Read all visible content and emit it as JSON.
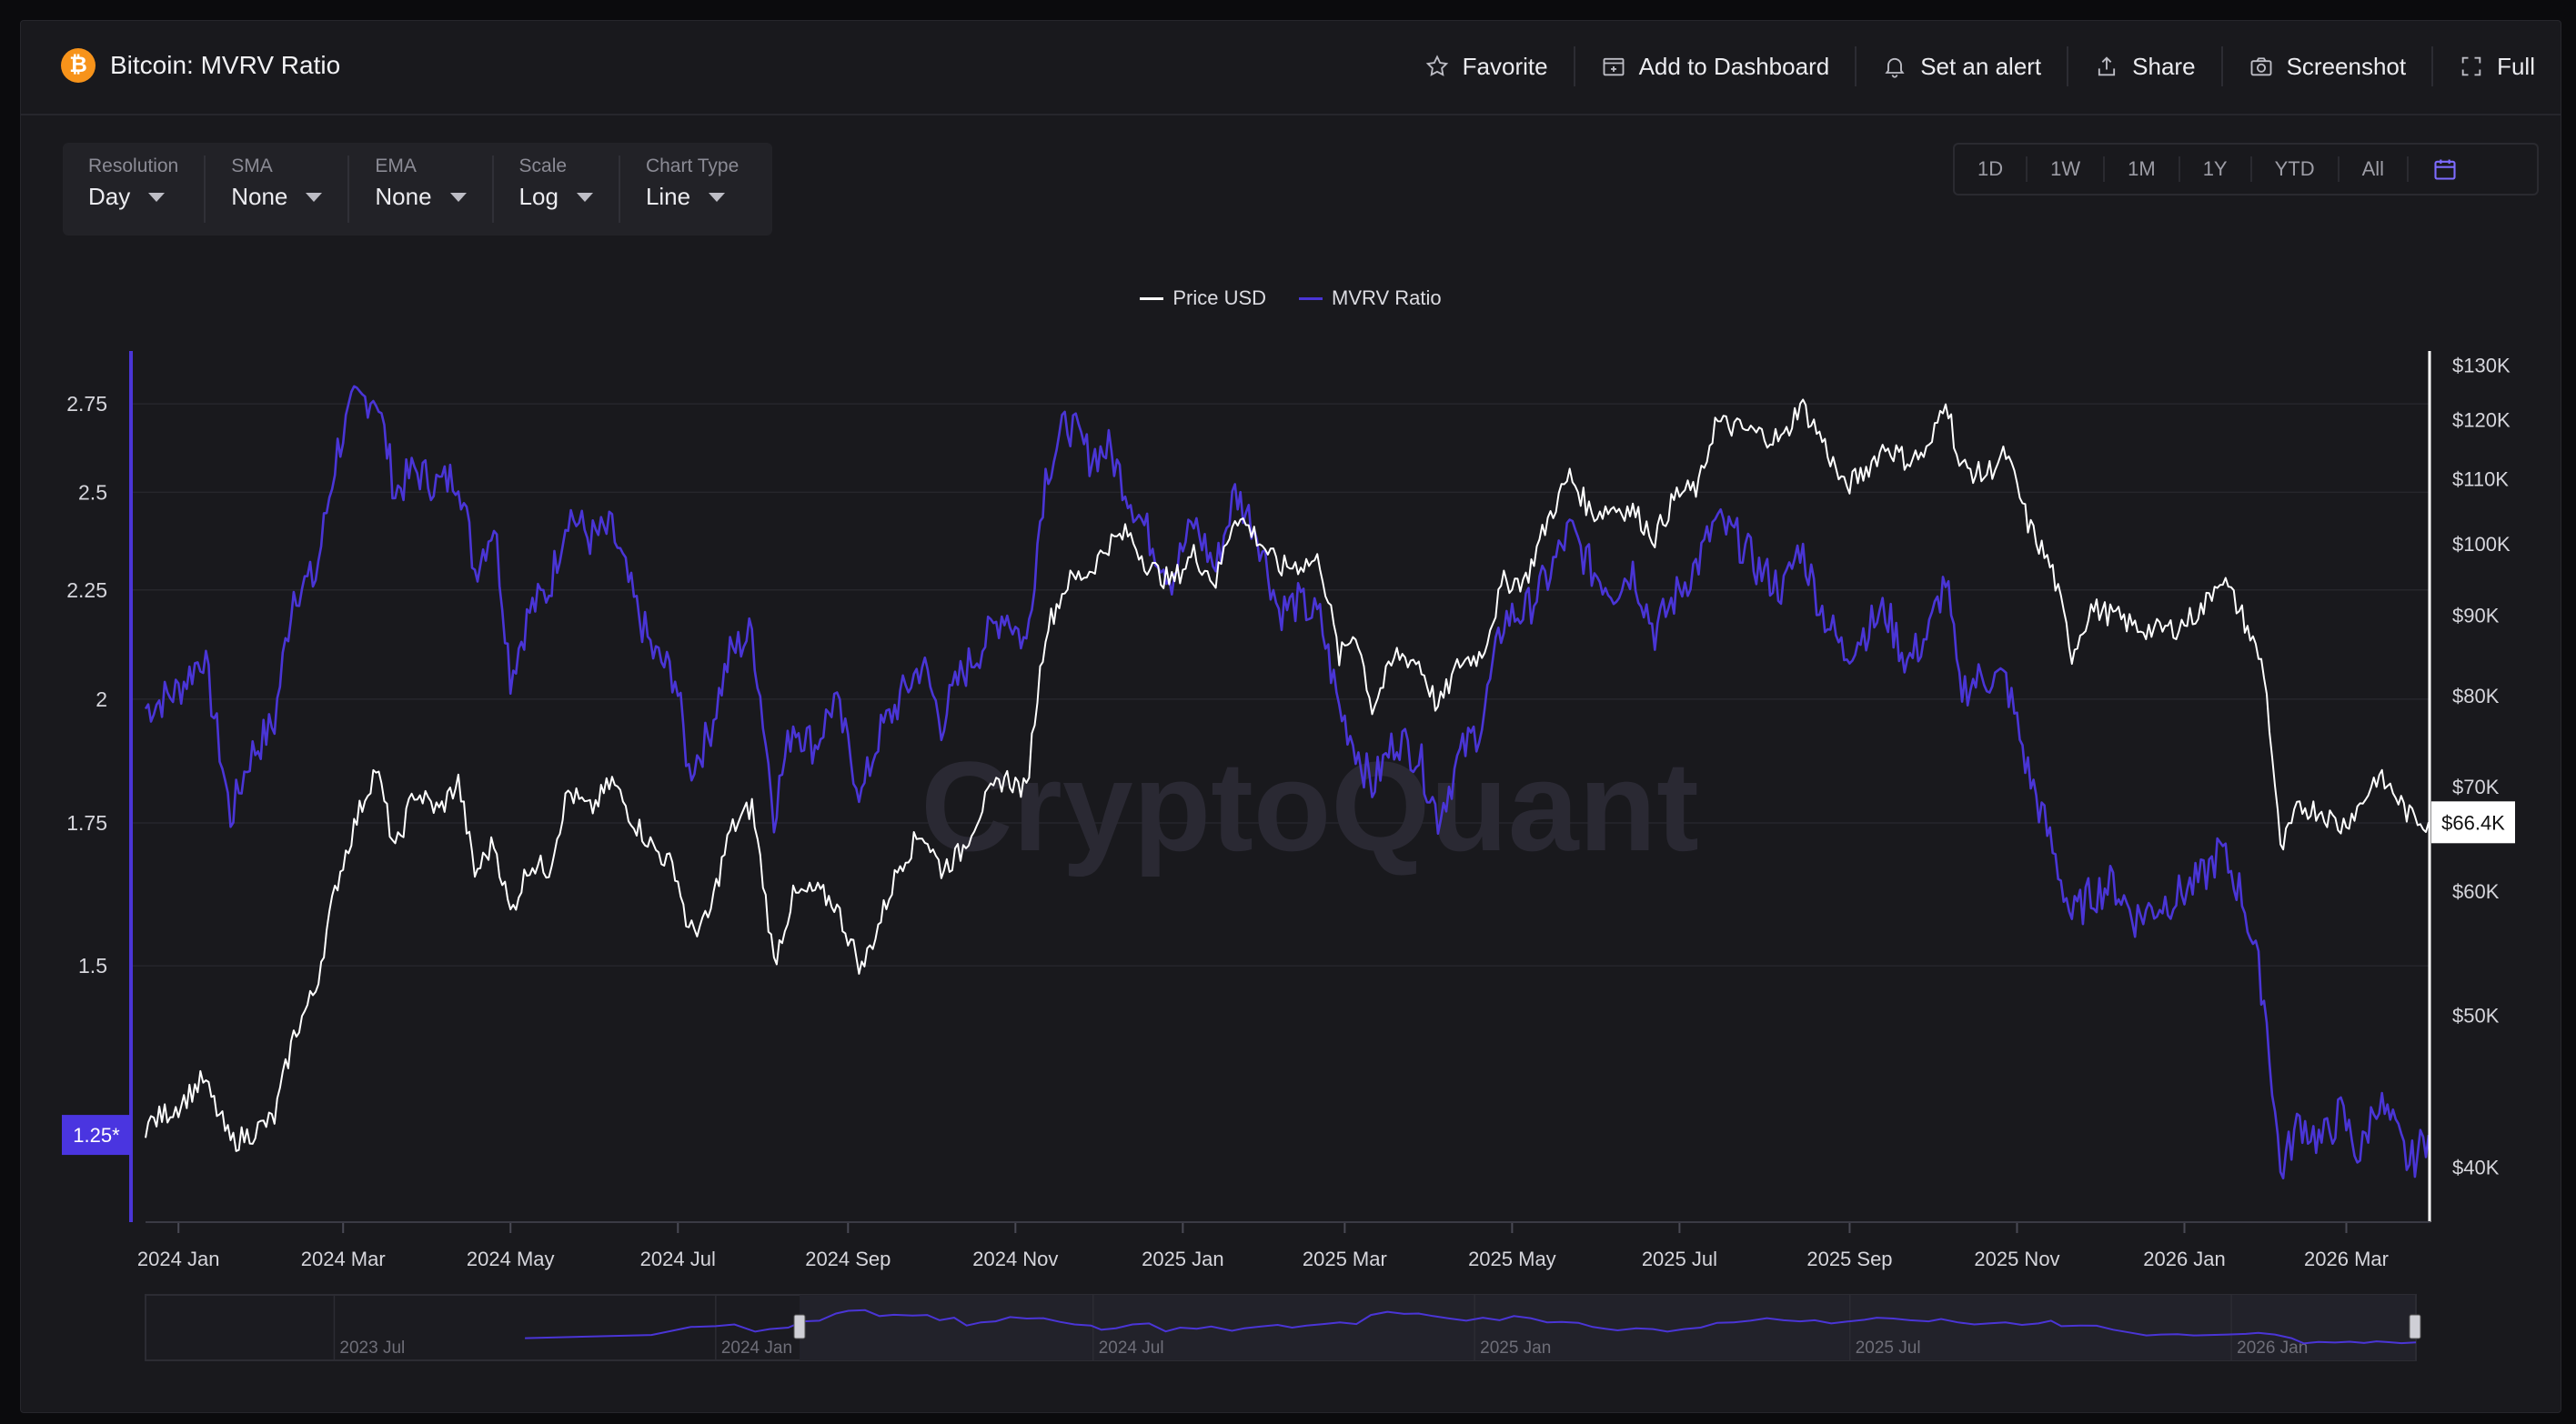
{
  "header": {
    "icon": "bitcoin-icon",
    "title": "Bitcoin: MVRV Ratio",
    "actions": [
      {
        "label": "Favorite",
        "icon": "star-icon"
      },
      {
        "label": "Add to Dashboard",
        "icon": "dashboard-add-icon"
      },
      {
        "label": "Set an alert",
        "icon": "bell-icon"
      },
      {
        "label": "Share",
        "icon": "share-icon"
      },
      {
        "label": "Screenshot",
        "icon": "camera-icon"
      },
      {
        "label": "Full",
        "icon": "fullscreen-icon"
      }
    ]
  },
  "controls": [
    {
      "label": "Resolution",
      "value": "Day"
    },
    {
      "label": "SMA",
      "value": "None"
    },
    {
      "label": "EMA",
      "value": "None"
    },
    {
      "label": "Scale",
      "value": "Log"
    },
    {
      "label": "Chart Type",
      "value": "Line"
    }
  ],
  "ranges": [
    "1D",
    "1W",
    "1M",
    "1Y",
    "YTD",
    "All"
  ],
  "watermark": "CryptoQuant",
  "colors": {
    "price": "#ffffff",
    "mvrv": "#4a35d6",
    "accent": "#5b46ff",
    "background": "#19191d"
  },
  "chart_data": {
    "type": "line",
    "title": "Bitcoin: MVRV Ratio",
    "legend": [
      "Price USD",
      "MVRV Ratio"
    ],
    "legend_position": "top-center",
    "grid": true,
    "scale": "log",
    "x_tick_labels": [
      "2024 Jan",
      "2024 Mar",
      "2024 May",
      "2024 Jul",
      "2024 Sep",
      "2024 Nov",
      "2025 Jan",
      "2025 Mar",
      "2025 May",
      "2025 Jul",
      "2025 Sep",
      "2025 Nov",
      "2026 Jan",
      "2026 Mar"
    ],
    "left_axis": {
      "ticks": [
        "2.75",
        "2.5",
        "2.25",
        "2",
        "1.75",
        "1.5"
      ],
      "range": [
        1.14,
        2.9
      ],
      "current_label": "1.25*"
    },
    "right_axis": {
      "ticks": [
        "$130K",
        "$120K",
        "$110K",
        "$100K",
        "$90K",
        "$80K",
        "$70K",
        "$60K",
        "$50K",
        "$40K"
      ],
      "range": [
        37000,
        132000
      ],
      "current_label": "$66.4K"
    },
    "x_range": [
      "2023-12-20",
      "2026-03-31"
    ],
    "series": [
      {
        "name": "MVRV Ratio",
        "axis": "left",
        "points": [
          [
            "2023-12-20",
            1.98
          ],
          [
            "2024-01-01",
            2.02
          ],
          [
            "2024-01-10",
            2.1
          ],
          [
            "2024-01-20",
            1.76
          ],
          [
            "2024-01-27",
            1.88
          ],
          [
            "2024-02-05",
            1.95
          ],
          [
            "2024-02-12",
            2.25
          ],
          [
            "2024-02-20",
            2.28
          ],
          [
            "2024-02-28",
            2.62
          ],
          [
            "2024-03-05",
            2.75
          ],
          [
            "2024-03-13",
            2.78
          ],
          [
            "2024-03-20",
            2.5
          ],
          [
            "2024-03-27",
            2.56
          ],
          [
            "2024-04-05",
            2.52
          ],
          [
            "2024-04-12",
            2.55
          ],
          [
            "2024-04-18",
            2.3
          ],
          [
            "2024-04-25",
            2.42
          ],
          [
            "2024-05-01",
            2.05
          ],
          [
            "2024-05-08",
            2.2
          ],
          [
            "2024-05-15",
            2.25
          ],
          [
            "2024-05-22",
            2.45
          ],
          [
            "2024-05-30",
            2.38
          ],
          [
            "2024-06-07",
            2.4
          ],
          [
            "2024-06-15",
            2.22
          ],
          [
            "2024-06-22",
            2.1
          ],
          [
            "2024-06-30",
            2.05
          ],
          [
            "2024-07-05",
            1.85
          ],
          [
            "2024-07-12",
            1.92
          ],
          [
            "2024-07-20",
            2.1
          ],
          [
            "2024-07-28",
            2.15
          ],
          [
            "2024-08-05",
            1.77
          ],
          [
            "2024-08-12",
            1.95
          ],
          [
            "2024-08-20",
            1.9
          ],
          [
            "2024-08-27",
            2.0
          ],
          [
            "2024-09-06",
            1.8
          ],
          [
            "2024-09-12",
            1.92
          ],
          [
            "2024-09-20",
            2.0
          ],
          [
            "2024-09-28",
            2.08
          ],
          [
            "2024-10-05",
            1.95
          ],
          [
            "2024-10-12",
            2.05
          ],
          [
            "2024-10-20",
            2.12
          ],
          [
            "2024-10-28",
            2.2
          ],
          [
            "2024-11-05",
            2.12
          ],
          [
            "2024-11-12",
            2.55
          ],
          [
            "2024-11-20",
            2.7
          ],
          [
            "2024-11-28",
            2.6
          ],
          [
            "2024-12-05",
            2.62
          ],
          [
            "2024-12-12",
            2.5
          ],
          [
            "2024-12-20",
            2.38
          ],
          [
            "2024-12-28",
            2.28
          ],
          [
            "2025-01-05",
            2.42
          ],
          [
            "2025-01-13",
            2.3
          ],
          [
            "2025-01-20",
            2.5
          ],
          [
            "2025-01-28",
            2.4
          ],
          [
            "2025-02-05",
            2.2
          ],
          [
            "2025-02-12",
            2.22
          ],
          [
            "2025-02-20",
            2.18
          ],
          [
            "2025-02-27",
            1.98
          ],
          [
            "2025-03-05",
            1.9
          ],
          [
            "2025-03-11",
            1.82
          ],
          [
            "2025-03-20",
            1.92
          ],
          [
            "2025-03-28",
            1.88
          ],
          [
            "2025-04-04",
            1.76
          ],
          [
            "2025-04-12",
            1.88
          ],
          [
            "2025-04-20",
            1.95
          ],
          [
            "2025-04-28",
            2.18
          ],
          [
            "2025-05-06",
            2.2
          ],
          [
            "2025-05-14",
            2.28
          ],
          [
            "2025-05-22",
            2.4
          ],
          [
            "2025-05-30",
            2.3
          ],
          [
            "2025-06-07",
            2.25
          ],
          [
            "2025-06-14",
            2.3
          ],
          [
            "2025-06-22",
            2.15
          ],
          [
            "2025-06-30",
            2.24
          ],
          [
            "2025-07-08",
            2.32
          ],
          [
            "2025-07-14",
            2.42
          ],
          [
            "2025-07-22",
            2.38
          ],
          [
            "2025-07-30",
            2.3
          ],
          [
            "2025-08-08",
            2.25
          ],
          [
            "2025-08-14",
            2.36
          ],
          [
            "2025-08-22",
            2.2
          ],
          [
            "2025-08-30",
            2.1
          ],
          [
            "2025-09-06",
            2.15
          ],
          [
            "2025-09-14",
            2.2
          ],
          [
            "2025-09-22",
            2.08
          ],
          [
            "2025-09-30",
            2.15
          ],
          [
            "2025-10-06",
            2.28
          ],
          [
            "2025-10-11",
            2.02
          ],
          [
            "2025-10-20",
            2.05
          ],
          [
            "2025-10-28",
            2.04
          ],
          [
            "2025-11-05",
            1.85
          ],
          [
            "2025-11-14",
            1.7
          ],
          [
            "2025-11-21",
            1.58
          ],
          [
            "2025-11-28",
            1.62
          ],
          [
            "2025-12-06",
            1.64
          ],
          [
            "2025-12-14",
            1.58
          ],
          [
            "2025-12-22",
            1.6
          ],
          [
            "2025-12-30",
            1.62
          ],
          [
            "2026-01-08",
            1.65
          ],
          [
            "2026-01-14",
            1.7
          ],
          [
            "2026-01-22",
            1.62
          ],
          [
            "2026-01-30",
            1.45
          ],
          [
            "2026-02-05",
            1.2
          ],
          [
            "2026-02-12",
            1.27
          ],
          [
            "2026-02-20",
            1.24
          ],
          [
            "2026-02-27",
            1.28
          ],
          [
            "2026-03-06",
            1.22
          ],
          [
            "2026-03-12",
            1.3
          ],
          [
            "2026-03-18",
            1.26
          ],
          [
            "2026-03-24",
            1.21
          ],
          [
            "2026-03-31",
            1.25
          ]
        ]
      },
      {
        "name": "Price USD",
        "axis": "right",
        "points": [
          [
            "2023-12-20",
            42500
          ],
          [
            "2024-01-01",
            43800
          ],
          [
            "2024-01-10",
            45500
          ],
          [
            "2024-01-20",
            41500
          ],
          [
            "2024-01-27",
            42000
          ],
          [
            "2024-02-05",
            43000
          ],
          [
            "2024-02-12",
            48500
          ],
          [
            "2024-02-20",
            52000
          ],
          [
            "2024-02-28",
            61000
          ],
          [
            "2024-03-05",
            66000
          ],
          [
            "2024-03-13",
            72000
          ],
          [
            "2024-03-20",
            63500
          ],
          [
            "2024-03-27",
            69500
          ],
          [
            "2024-04-05",
            67500
          ],
          [
            "2024-04-12",
            70500
          ],
          [
            "2024-04-18",
            61500
          ],
          [
            "2024-04-25",
            64500
          ],
          [
            "2024-05-01",
            58000
          ],
          [
            "2024-05-08",
            62500
          ],
          [
            "2024-05-15",
            62000
          ],
          [
            "2024-05-22",
            69500
          ],
          [
            "2024-05-30",
            67500
          ],
          [
            "2024-06-07",
            70500
          ],
          [
            "2024-06-15",
            66500
          ],
          [
            "2024-06-22",
            64000
          ],
          [
            "2024-06-30",
            62000
          ],
          [
            "2024-07-05",
            56500
          ],
          [
            "2024-07-12",
            57500
          ],
          [
            "2024-07-20",
            65500
          ],
          [
            "2024-07-28",
            68000
          ],
          [
            "2024-08-05",
            54000
          ],
          [
            "2024-08-12",
            59500
          ],
          [
            "2024-08-20",
            60000
          ],
          [
            "2024-08-27",
            59000
          ],
          [
            "2024-09-06",
            53500
          ],
          [
            "2024-09-12",
            57000
          ],
          [
            "2024-09-20",
            62500
          ],
          [
            "2024-09-28",
            65500
          ],
          [
            "2024-10-05",
            62000
          ],
          [
            "2024-10-12",
            63500
          ],
          [
            "2024-10-20",
            68000
          ],
          [
            "2024-10-28",
            71000
          ],
          [
            "2024-11-05",
            69500
          ],
          [
            "2024-11-12",
            88000
          ],
          [
            "2024-11-20",
            94500
          ],
          [
            "2024-11-28",
            96000
          ],
          [
            "2024-12-05",
            100000
          ],
          [
            "2024-12-12",
            101500
          ],
          [
            "2024-12-20",
            96500
          ],
          [
            "2024-12-28",
            94500
          ],
          [
            "2025-01-05",
            98500
          ],
          [
            "2025-01-13",
            94500
          ],
          [
            "2025-01-20",
            104500
          ],
          [
            "2025-01-28",
            101000
          ],
          [
            "2025-02-05",
            96500
          ],
          [
            "2025-02-12",
            97000
          ],
          [
            "2025-02-20",
            97500
          ],
          [
            "2025-02-27",
            84500
          ],
          [
            "2025-03-05",
            88000
          ],
          [
            "2025-03-11",
            78500
          ],
          [
            "2025-03-20",
            85000
          ],
          [
            "2025-03-28",
            84000
          ],
          [
            "2025-04-04",
            78500
          ],
          [
            "2025-04-12",
            84000
          ],
          [
            "2025-04-20",
            85000
          ],
          [
            "2025-04-28",
            94500
          ],
          [
            "2025-05-06",
            94800
          ],
          [
            "2025-05-14",
            103500
          ],
          [
            "2025-05-22",
            110500
          ],
          [
            "2025-05-30",
            104500
          ],
          [
            "2025-06-07",
            105500
          ],
          [
            "2025-06-14",
            105000
          ],
          [
            "2025-06-22",
            101000
          ],
          [
            "2025-06-30",
            107500
          ],
          [
            "2025-07-08",
            108500
          ],
          [
            "2025-07-14",
            119500
          ],
          [
            "2025-07-22",
            118500
          ],
          [
            "2025-07-30",
            117500
          ],
          [
            "2025-08-08",
            116500
          ],
          [
            "2025-08-14",
            123000
          ],
          [
            "2025-08-22",
            116500
          ],
          [
            "2025-08-30",
            108500
          ],
          [
            "2025-09-06",
            111000
          ],
          [
            "2025-09-14",
            115500
          ],
          [
            "2025-09-22",
            113000
          ],
          [
            "2025-09-30",
            114500
          ],
          [
            "2025-10-06",
            124500
          ],
          [
            "2025-10-11",
            112000
          ],
          [
            "2025-10-20",
            110500
          ],
          [
            "2025-10-28",
            114000
          ],
          [
            "2025-11-05",
            103000
          ],
          [
            "2025-11-14",
            96000
          ],
          [
            "2025-11-21",
            85000
          ],
          [
            "2025-11-28",
            91000
          ],
          [
            "2025-12-06",
            90000
          ],
          [
            "2025-12-14",
            88500
          ],
          [
            "2025-12-22",
            88000
          ],
          [
            "2025-12-30",
            88500
          ],
          [
            "2026-01-08",
            91000
          ],
          [
            "2026-01-14",
            95500
          ],
          [
            "2026-01-22",
            90000
          ],
          [
            "2026-01-30",
            83000
          ],
          [
            "2026-02-05",
            63500
          ],
          [
            "2026-02-12",
            68000
          ],
          [
            "2026-02-20",
            67500
          ],
          [
            "2026-02-27",
            66000
          ],
          [
            "2026-03-06",
            68000
          ],
          [
            "2026-03-12",
            71000
          ],
          [
            "2026-03-18",
            69500
          ],
          [
            "2026-03-24",
            67000
          ],
          [
            "2026-03-31",
            66400
          ]
        ]
      }
    ]
  },
  "navigator": {
    "labels": [
      "2023 Jul",
      "2024 Jan",
      "2024 Jul",
      "2025 Jan",
      "2025 Jul",
      "2026 Jan"
    ]
  }
}
